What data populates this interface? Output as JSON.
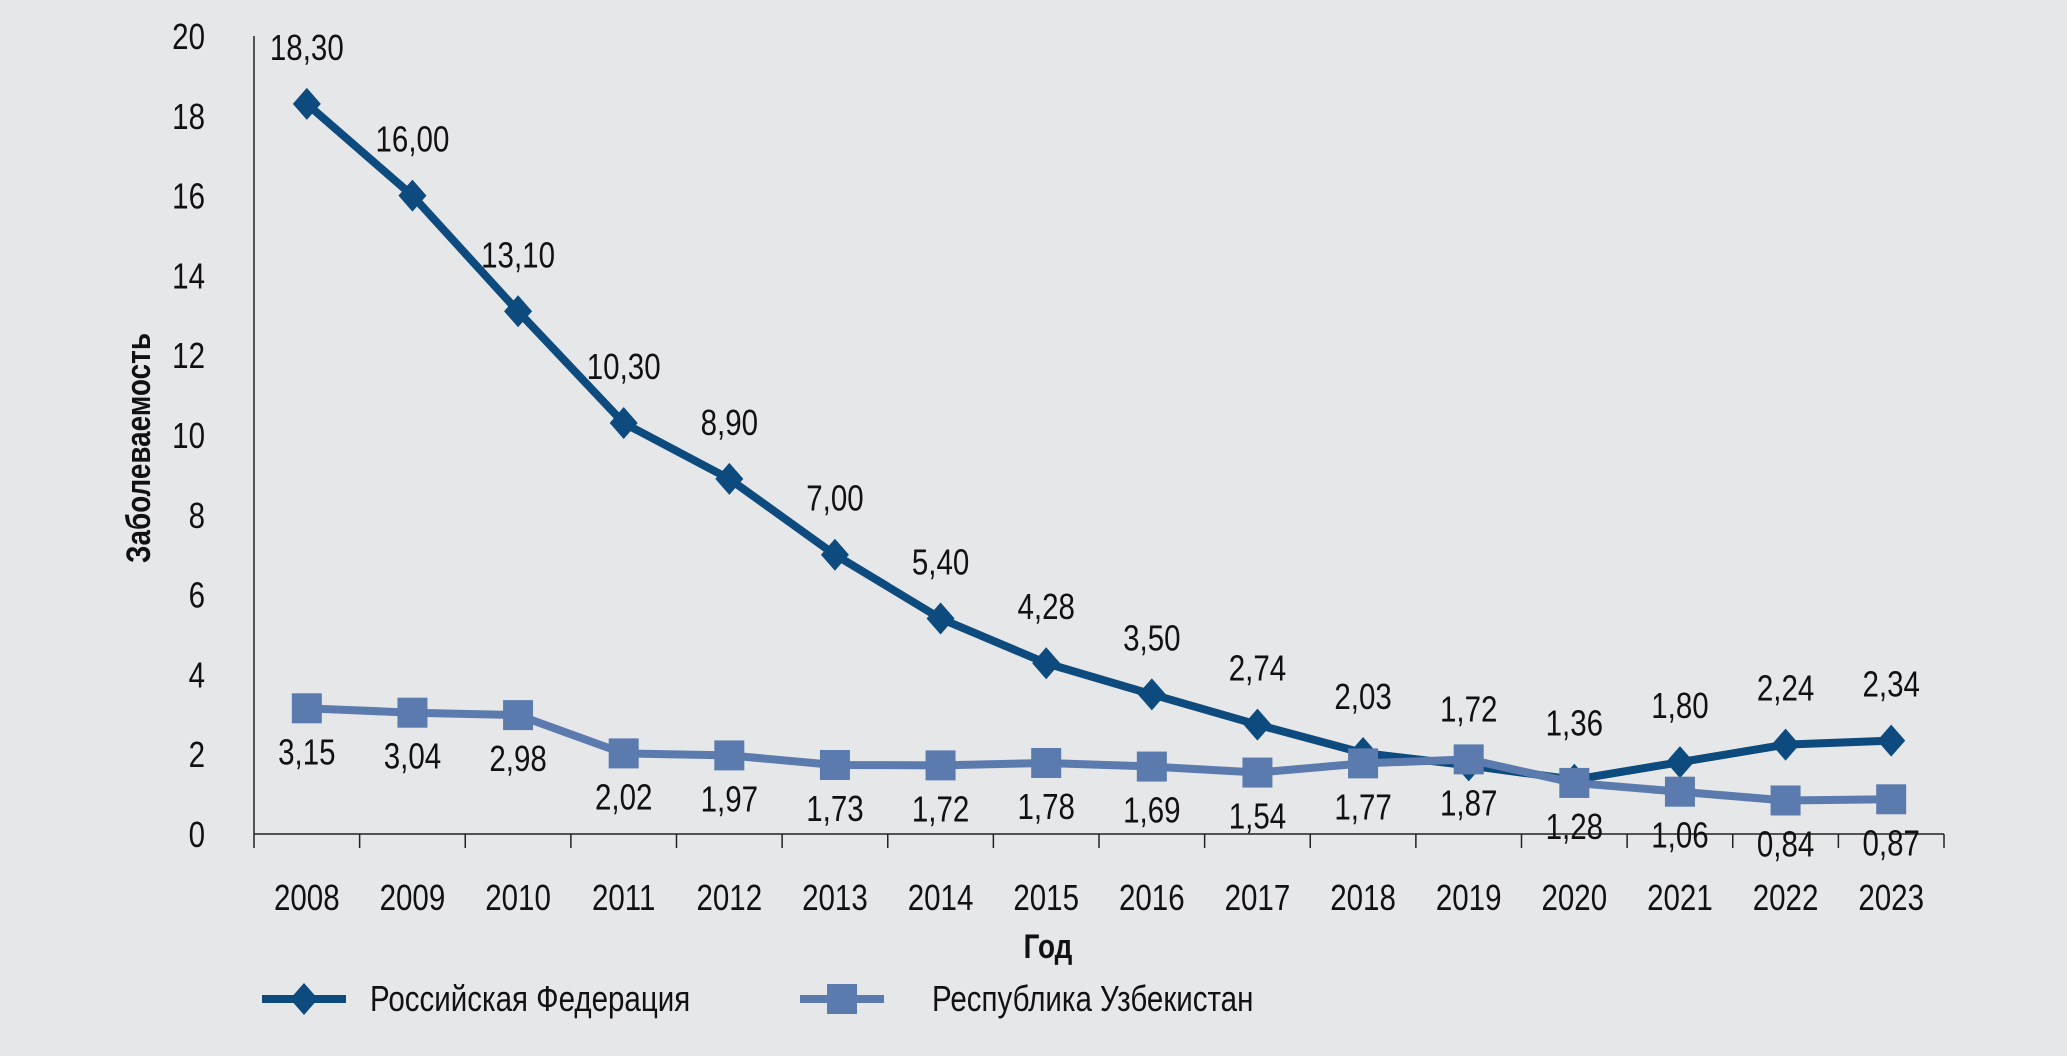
{
  "chart_data": {
    "type": "line",
    "title": "",
    "xlabel": "Год",
    "ylabel": "Заболеваемость",
    "ylim": [
      0,
      20
    ],
    "yticks": [
      "0",
      "2",
      "4",
      "6",
      "8",
      "10",
      "12",
      "14",
      "16",
      "18",
      "20"
    ],
    "categories": [
      "2008",
      "2009",
      "2010",
      "2011",
      "2012",
      "2013",
      "2014",
      "2015",
      "2016",
      "2017",
      "2018",
      "2019",
      "2020",
      "2021",
      "2022",
      "2023"
    ],
    "grid": false,
    "legend_position": "bottom-left",
    "series": [
      {
        "name": "Российская Федерация",
        "color": "#0d4a7e",
        "marker": "diamond",
        "label_position": "above",
        "values": [
          18.3,
          16.0,
          13.1,
          10.3,
          8.9,
          7.0,
          5.4,
          4.28,
          3.5,
          2.74,
          2.03,
          1.72,
          1.36,
          1.8,
          2.24,
          2.34
        ],
        "labels": [
          "18,30",
          "16,00",
          "13,10",
          "10,30",
          "8,90",
          "7,00",
          "5,40",
          "4,28",
          "3,50",
          "2,74",
          "2,03",
          "1,72",
          "1,36",
          "1,80",
          "2,24",
          "2,34"
        ]
      },
      {
        "name": "Республика Узбекистан",
        "color": "#5b7bae",
        "marker": "square",
        "label_position": "below",
        "values": [
          3.15,
          3.04,
          2.98,
          2.02,
          1.97,
          1.73,
          1.72,
          1.78,
          1.69,
          1.54,
          1.77,
          1.87,
          1.28,
          1.06,
          0.84,
          0.87
        ],
        "labels": [
          "3,15",
          "3,04",
          "2,98",
          "2,02",
          "1,97",
          "1,73",
          "1,72",
          "1,78",
          "1,69",
          "1,54",
          "1,77",
          "1,87",
          "1,28",
          "1,06",
          "0,84",
          "0,87"
        ]
      }
    ]
  }
}
